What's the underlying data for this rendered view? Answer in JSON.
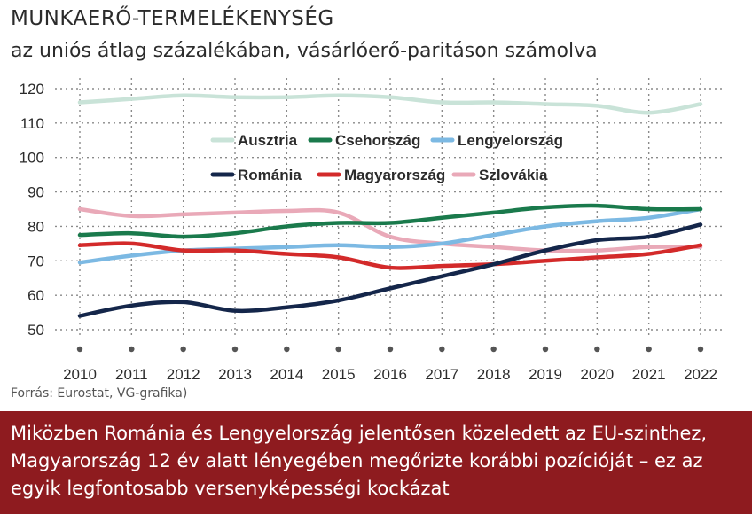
{
  "header": {
    "title": "MUNKAERŐ-TERMELÉKENYSÉG",
    "subtitle": "az uniós átlag százalékában, vásárlóerő-paritáson számolva"
  },
  "source": "Forrás: Eurostat, VG-grafika)",
  "banner": {
    "text": "Miközben Románia és Lengyelország jelentősen közeledett az EU-szinthez, Magyarország 12 év alatt lényegében megőrizte korábbi pozícióját – ez az egyik legfontosabb versenyképességi kockázat",
    "background": "#8e1b1f"
  },
  "chart_data": {
    "type": "line",
    "x": [
      2010,
      2011,
      2012,
      2013,
      2014,
      2015,
      2016,
      2017,
      2018,
      2019,
      2020,
      2021,
      2022
    ],
    "ylim": [
      45,
      122
    ],
    "yticks": [
      50,
      60,
      70,
      80,
      90,
      100,
      110,
      120
    ],
    "grid": true,
    "legend": "top-center, inside plot",
    "series": [
      {
        "name": "Ausztria",
        "color": "#c9e3d8",
        "values": [
          116,
          117,
          118,
          117.5,
          117.5,
          118,
          117.5,
          116,
          116,
          115.5,
          115,
          113,
          115.5
        ]
      },
      {
        "name": "Csehország",
        "color": "#1a7a4c",
        "values": [
          77.5,
          78,
          77,
          78,
          80,
          81,
          81,
          82.5,
          84,
          85.5,
          86,
          85,
          85
        ]
      },
      {
        "name": "Lengyelország",
        "color": "#7cb9e3",
        "values": [
          69.5,
          71.5,
          73,
          73.5,
          74,
          74.5,
          74,
          75,
          77.5,
          80,
          81.5,
          82.5,
          85
        ]
      },
      {
        "name": "Románia",
        "color": "#14264a",
        "values": [
          54,
          57,
          58,
          55.5,
          56.5,
          58.5,
          62,
          65.5,
          69,
          73,
          76,
          77,
          80.5
        ]
      },
      {
        "name": "Magyarország",
        "color": "#d32a2a",
        "values": [
          74.5,
          75,
          73,
          73,
          72,
          71,
          68,
          68.5,
          69,
          70,
          71,
          72,
          74.5
        ]
      },
      {
        "name": "Szlovákia",
        "color": "#e9a9b8",
        "values": [
          85,
          83,
          83.5,
          84,
          84.5,
          84,
          77,
          75,
          74,
          73,
          73,
          74,
          74
        ]
      }
    ]
  }
}
